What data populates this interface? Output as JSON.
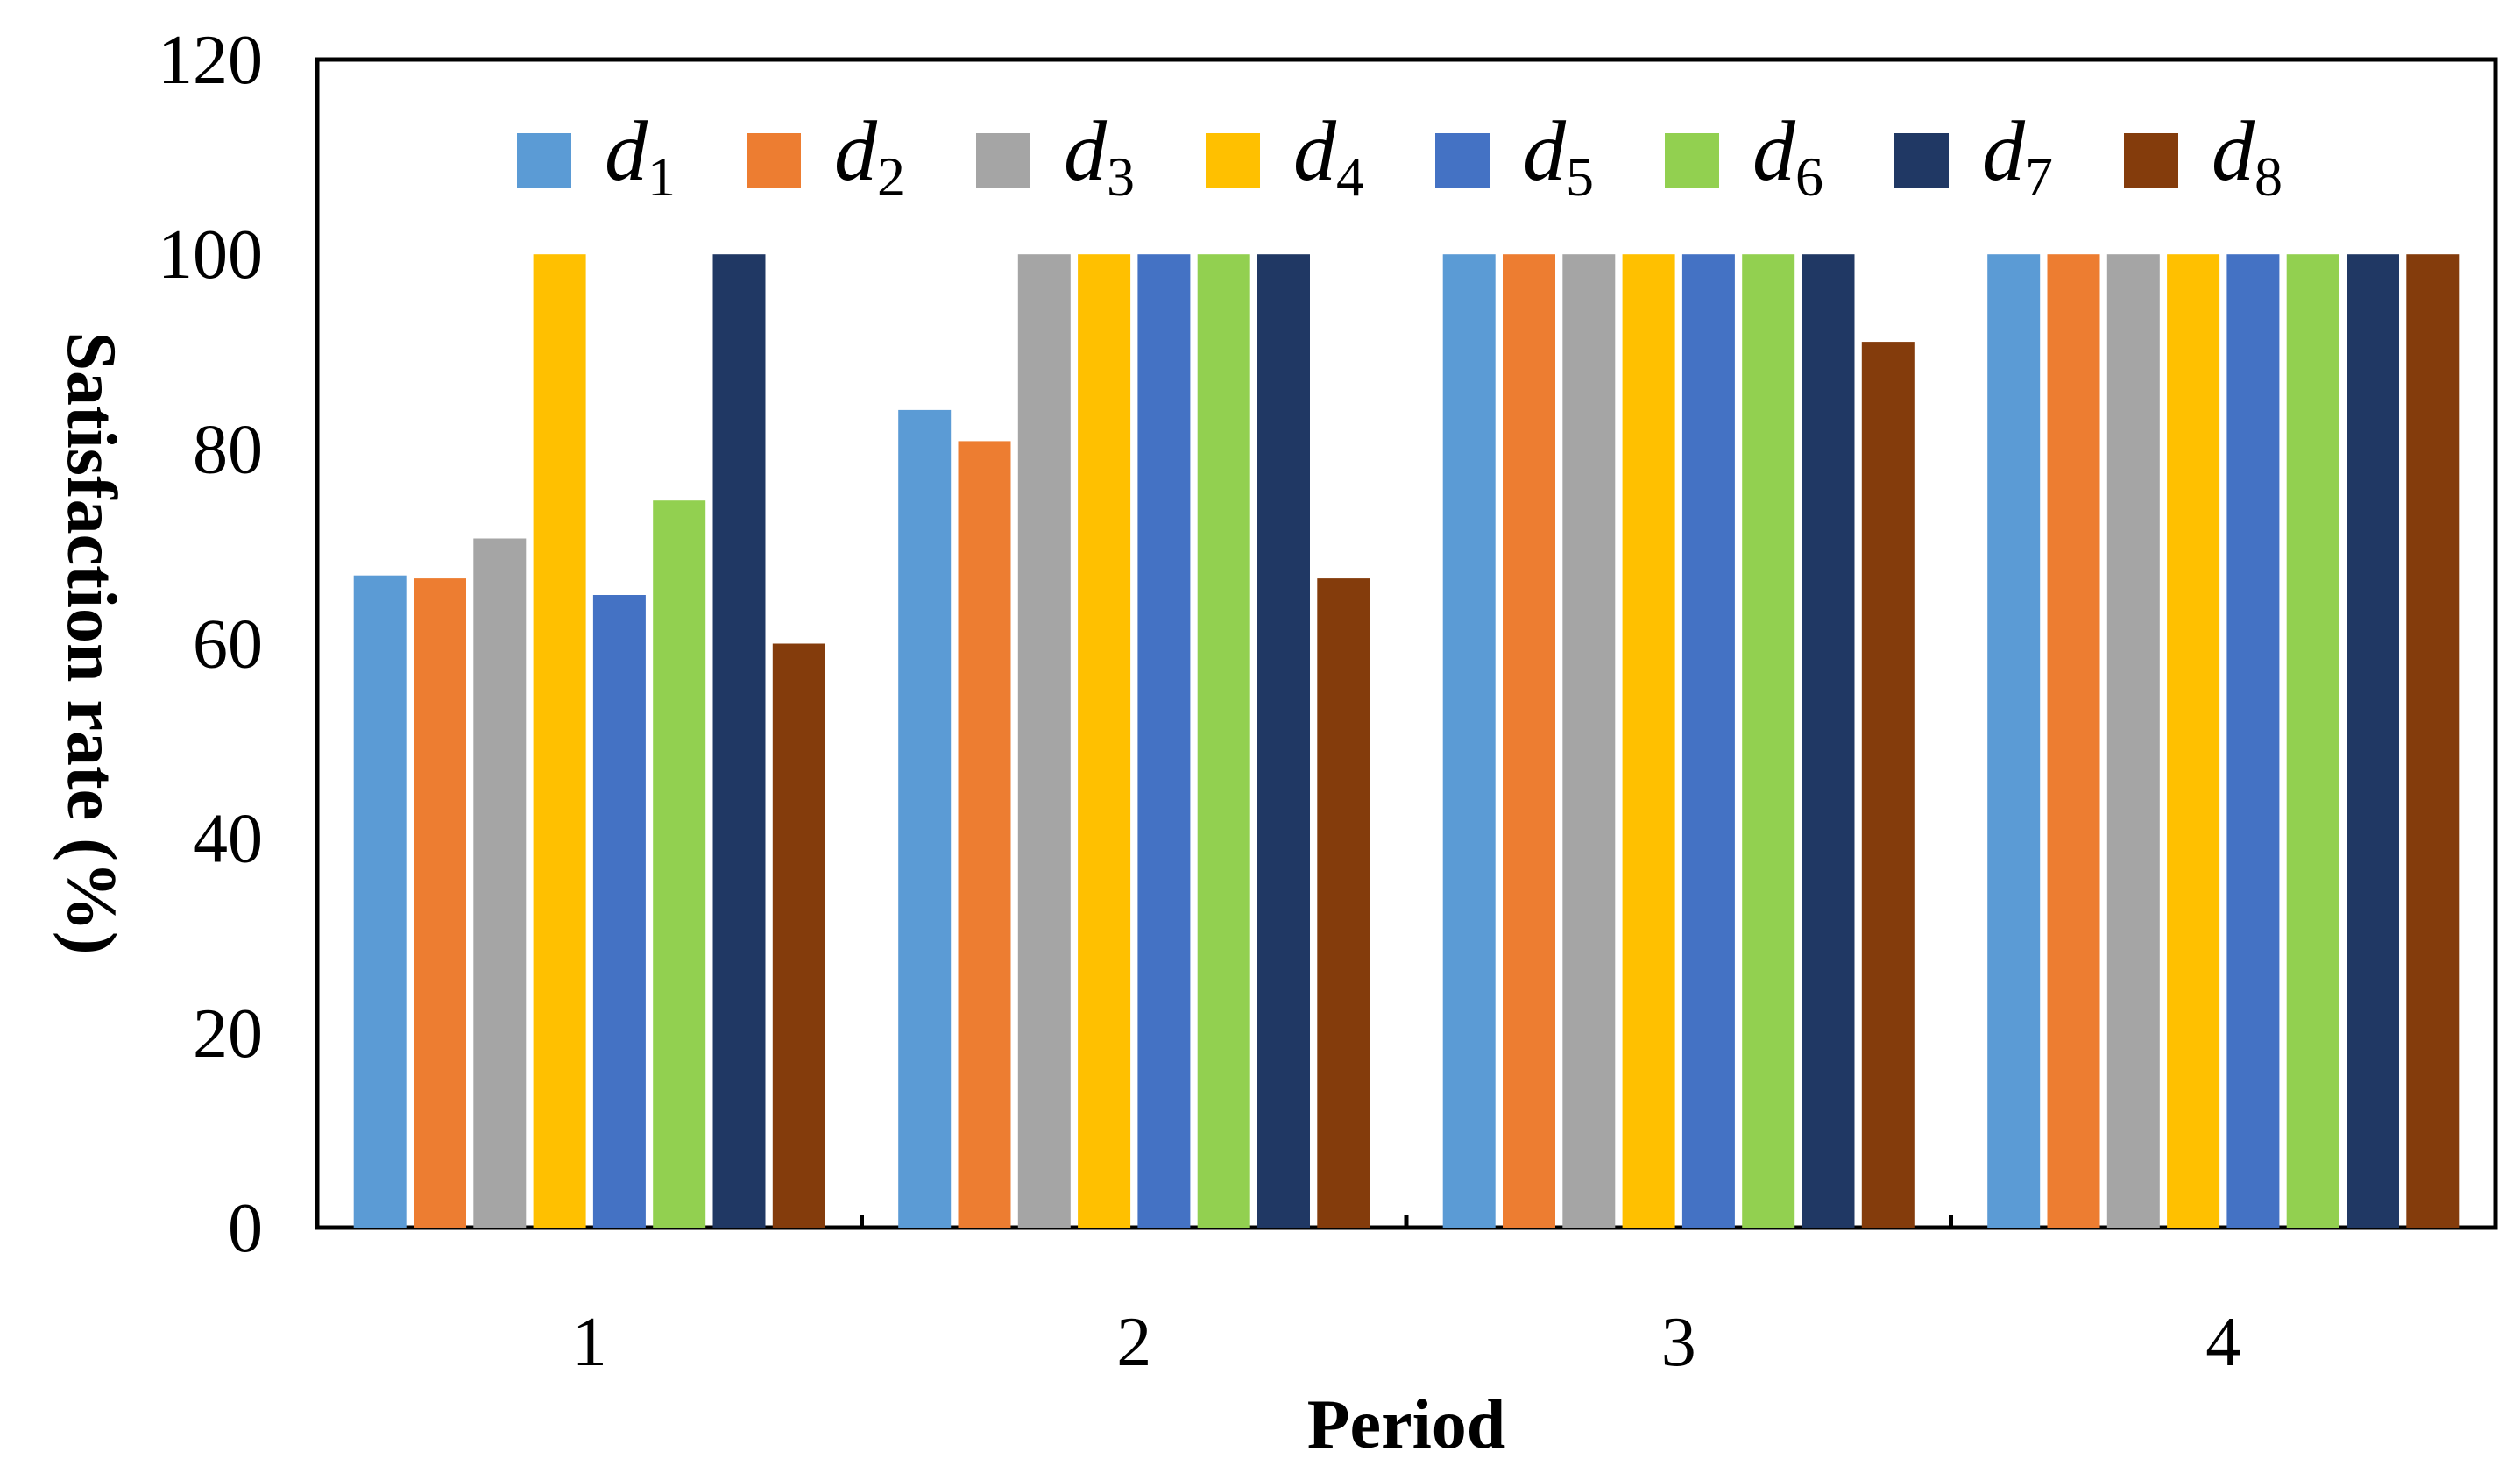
{
  "chart_data": {
    "type": "bar",
    "title": "",
    "xlabel": "Period",
    "ylabel": "Satisfaction rate (%)",
    "ylim": [
      0,
      120
    ],
    "yticks": [
      "0",
      "20",
      "40",
      "60",
      "80",
      "100",
      "120"
    ],
    "categories": [
      "1",
      "2",
      "3",
      "4"
    ],
    "grid": false,
    "legend_position": "top",
    "series": [
      {
        "name": "d",
        "sub": "1",
        "color": "#5B9BD5",
        "values": [
          67,
          84,
          100,
          100
        ]
      },
      {
        "name": "d",
        "sub": "2",
        "color": "#ED7D31",
        "values": [
          66.7,
          80.8,
          100,
          100
        ]
      },
      {
        "name": "d",
        "sub": "3",
        "color": "#A5A5A5",
        "values": [
          70.8,
          100,
          100,
          100
        ]
      },
      {
        "name": "d",
        "sub": "4",
        "color": "#FFC000",
        "values": [
          100,
          100,
          100,
          100
        ]
      },
      {
        "name": "d",
        "sub": "5",
        "color": "#4472C4",
        "values": [
          65,
          100,
          100,
          100
        ]
      },
      {
        "name": "d",
        "sub": "6",
        "color": "#92D050",
        "values": [
          74.7,
          100,
          100,
          100
        ]
      },
      {
        "name": "d",
        "sub": "7",
        "color": "#203864",
        "values": [
          100,
          100,
          100,
          100
        ]
      },
      {
        "name": "d",
        "sub": "8",
        "color": "#843C0C",
        "values": [
          60,
          66.7,
          91,
          100
        ]
      }
    ]
  }
}
